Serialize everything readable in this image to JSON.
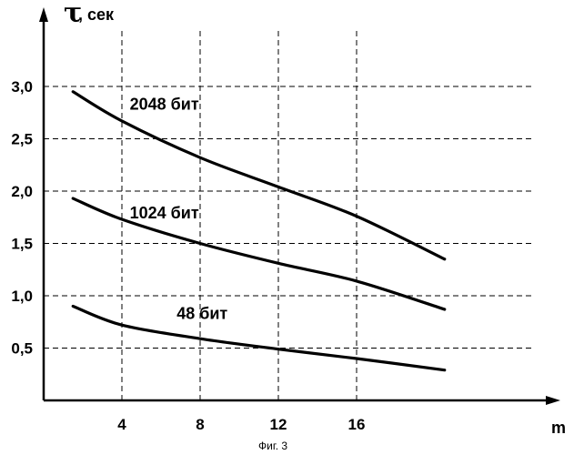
{
  "chart_data": {
    "type": "line",
    "ylabel_symbol": "τ",
    "ylabel_unit": ", сек",
    "xlabel": "m",
    "caption": "Фиг. 3",
    "xlim": [
      -0.5,
      22
    ],
    "ylim": [
      0,
      3.4
    ],
    "x_ticks": [
      4,
      8,
      12,
      16
    ],
    "x_tick_labels": [
      "4",
      "8",
      "12",
      "16"
    ],
    "y_ticks": [
      0.5,
      1.0,
      1.5,
      2.0,
      2.5,
      3.0
    ],
    "y_tick_labels": [
      "0,5",
      "1,0",
      "1,5",
      "2,0",
      "2,5",
      "3,0"
    ],
    "grid": true,
    "series": [
      {
        "name": "2048 бит",
        "x": [
          1.5,
          4,
          8,
          12,
          16,
          20.5
        ],
        "y": [
          2.95,
          2.67,
          2.32,
          2.04,
          1.76,
          1.35
        ]
      },
      {
        "name": "1024 бит",
        "x": [
          1.5,
          4,
          8,
          12,
          16,
          20.5
        ],
        "y": [
          1.93,
          1.73,
          1.5,
          1.31,
          1.14,
          0.87
        ]
      },
      {
        "name": "48 бит",
        "x": [
          1.5,
          4,
          8,
          12,
          16,
          20.5
        ],
        "y": [
          0.9,
          0.72,
          0.59,
          0.49,
          0.4,
          0.29
        ]
      }
    ],
    "label_positions": [
      {
        "x": 4.4,
        "y": 2.78
      },
      {
        "x": 4.4,
        "y": 1.74
      },
      {
        "x": 6.8,
        "y": 0.78
      }
    ]
  }
}
